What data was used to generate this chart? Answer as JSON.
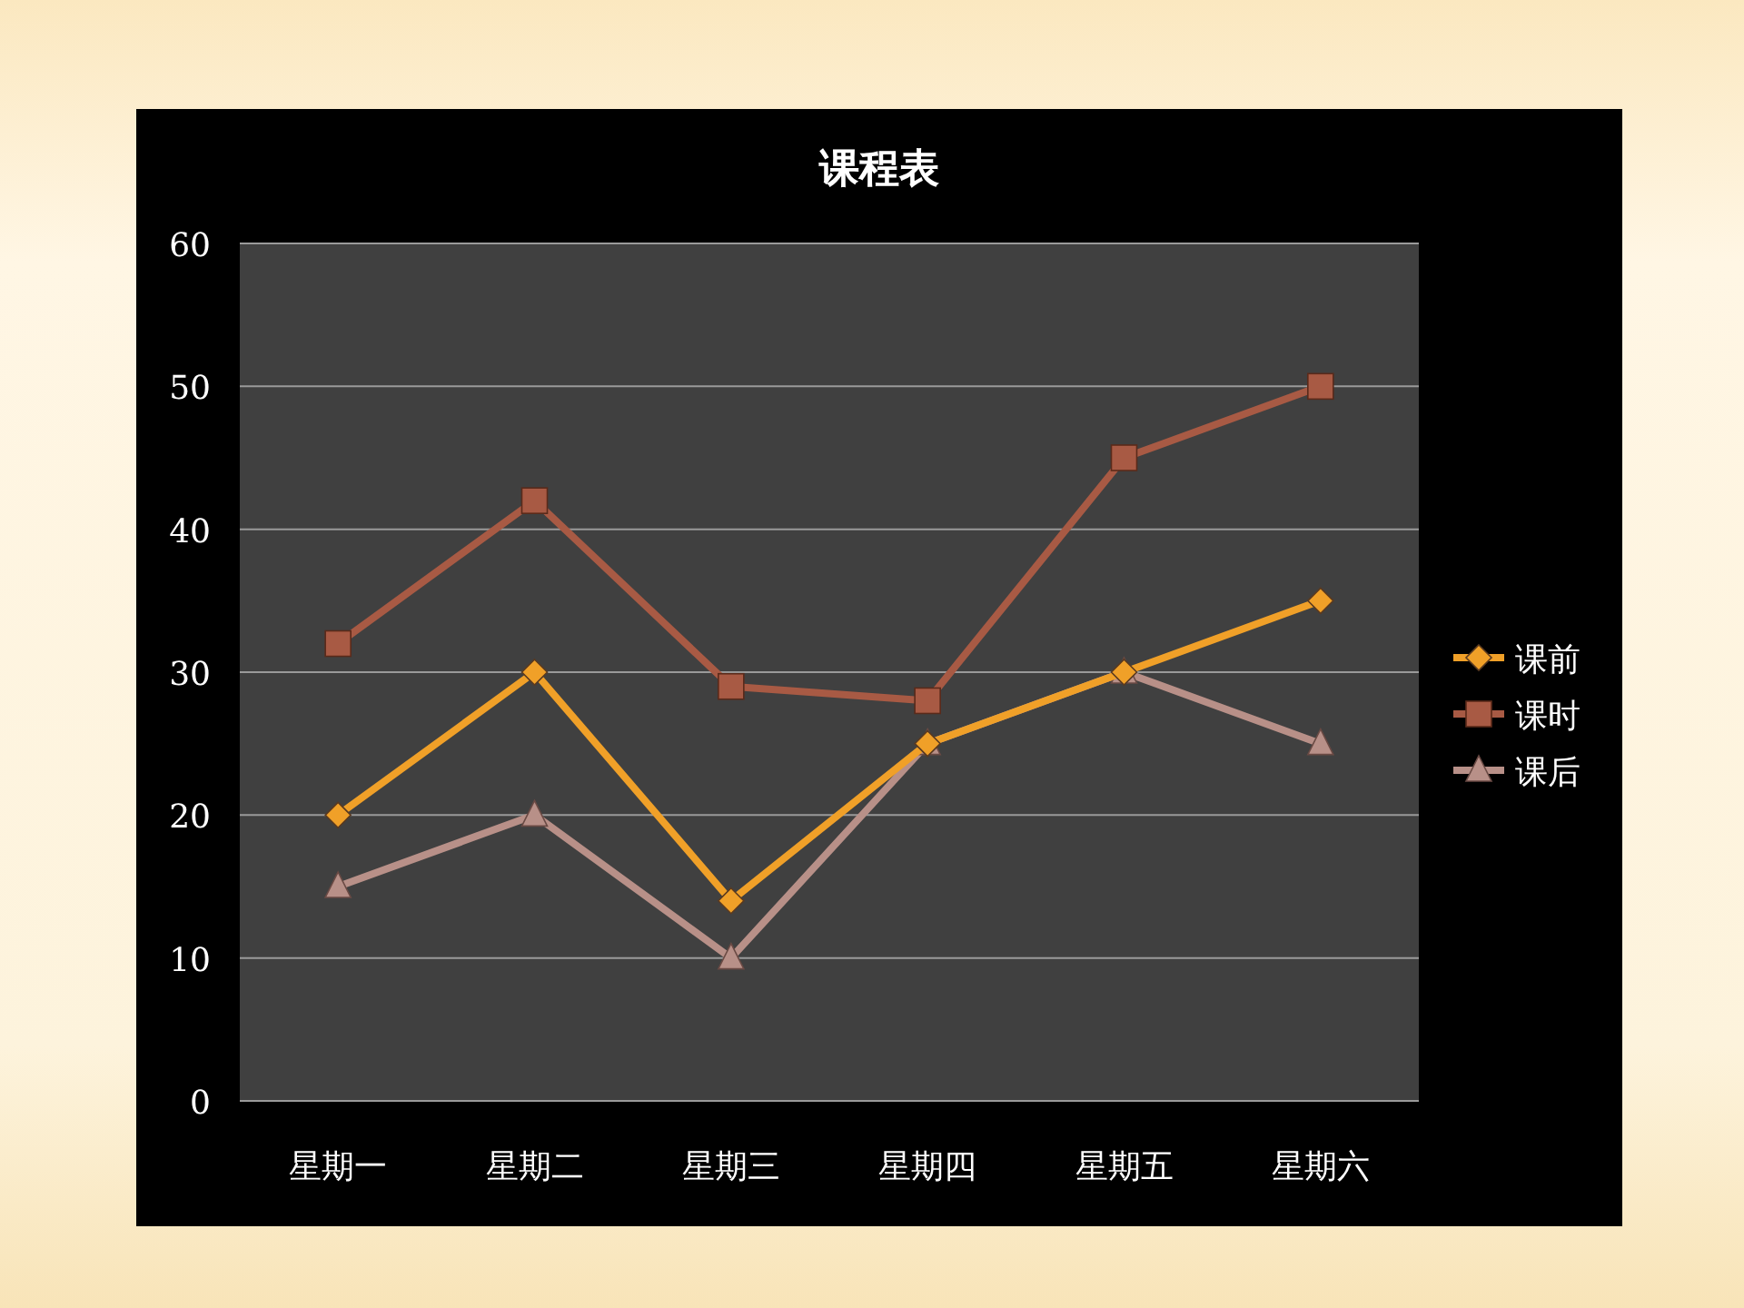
{
  "chart_data": {
    "type": "line",
    "title": "课程表",
    "categories": [
      "星期一",
      "星期二",
      "星期三",
      "星期四",
      "星期五",
      "星期六"
    ],
    "series": [
      {
        "name": "课前",
        "color": "#f0a028",
        "marker": "diamond",
        "values": [
          20,
          30,
          14,
          25,
          30,
          35
        ]
      },
      {
        "name": "课时",
        "color": "#a85a44",
        "marker": "square",
        "values": [
          32,
          42,
          29,
          28,
          45,
          50
        ]
      },
      {
        "name": "课后",
        "color": "#b89088",
        "marker": "triangle",
        "values": [
          15,
          20,
          10,
          25,
          30,
          25
        ]
      }
    ],
    "ylim": [
      0,
      60
    ],
    "yticks": [
      0,
      10,
      20,
      30,
      40,
      50,
      60
    ],
    "grid": "y",
    "legend": "right"
  }
}
